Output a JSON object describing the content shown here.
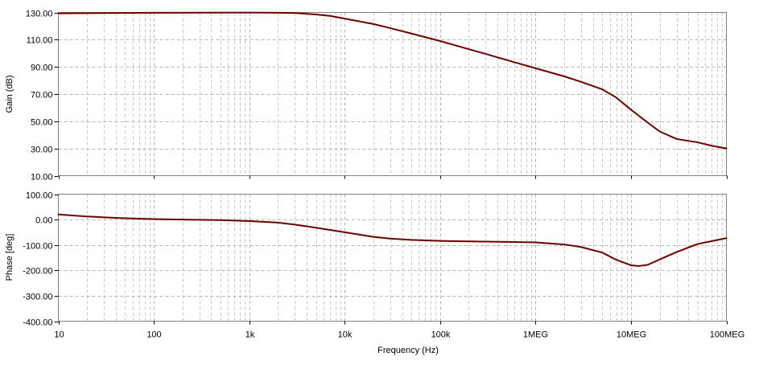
{
  "chart_data": [
    {
      "type": "line",
      "xlabel": "Frequency (Hz)",
      "ylabel": "Gain (dB)",
      "xscale": "log",
      "xlim": [
        10,
        100000000
      ],
      "ylim": [
        10,
        130
      ],
      "grid": true,
      "x_ticks": [
        {
          "value": 10,
          "label": "10"
        },
        {
          "value": 100,
          "label": "100"
        },
        {
          "value": 1000,
          "label": "1k"
        },
        {
          "value": 10000,
          "label": "10k"
        },
        {
          "value": 100000,
          "label": "100k"
        },
        {
          "value": 1000000,
          "label": "1MEG"
        },
        {
          "value": 10000000,
          "label": "10MEG"
        },
        {
          "value": 100000000,
          "label": "100MEG"
        }
      ],
      "y_ticks": [
        {
          "value": 130,
          "label": "130.00"
        },
        {
          "value": 110,
          "label": "110.00"
        },
        {
          "value": 90,
          "label": "90.00"
        },
        {
          "value": 70,
          "label": "70.00"
        },
        {
          "value": 50,
          "label": "50.00"
        },
        {
          "value": 30,
          "label": "30.00"
        },
        {
          "value": 10,
          "label": "10.00"
        }
      ],
      "series": [
        {
          "color": "#6b0000",
          "x": [
            10,
            100,
            1000,
            2000,
            3000,
            5000,
            7000,
            10000,
            20000,
            30000,
            50000,
            100000,
            200000,
            300000,
            500000,
            1000000,
            2000000,
            3000000,
            5000000,
            7000000,
            10000000,
            15000000,
            20000000,
            30000000,
            50000000,
            70000000,
            100000000
          ],
          "y": [
            129.3,
            129.8,
            129.9,
            129.8,
            129.6,
            128.5,
            127.5,
            125.5,
            121.5,
            118.5,
            114.5,
            109.0,
            103.0,
            99.5,
            95.0,
            89.0,
            83.0,
            79.0,
            73.5,
            67.5,
            58.5,
            49.0,
            42.5,
            37.0,
            34.5,
            32.0,
            30.0
          ]
        }
      ]
    },
    {
      "type": "line",
      "xlabel": "Frequency (Hz)",
      "ylabel": "Phase [deg]",
      "xscale": "log",
      "xlim": [
        10,
        100000000
      ],
      "ylim": [
        -400,
        100
      ],
      "grid": true,
      "x_ticks": [
        {
          "value": 10,
          "label": "10"
        },
        {
          "value": 100,
          "label": "100"
        },
        {
          "value": 1000,
          "label": "1k"
        },
        {
          "value": 10000,
          "label": "10k"
        },
        {
          "value": 100000,
          "label": "100k"
        },
        {
          "value": 1000000,
          "label": "1MEG"
        },
        {
          "value": 10000000,
          "label": "10MEG"
        },
        {
          "value": 100000000,
          "label": "100MEG"
        }
      ],
      "y_ticks": [
        {
          "value": 100,
          "label": "100.00"
        },
        {
          "value": 0,
          "label": "0.00"
        },
        {
          "value": -100,
          "label": "-100.00"
        },
        {
          "value": -200,
          "label": "-200.00"
        },
        {
          "value": -300,
          "label": "-300.00"
        },
        {
          "value": -400,
          "label": "-400.00"
        }
      ],
      "series": [
        {
          "color": "#6b0000",
          "x": [
            10,
            20,
            50,
            100,
            200,
            500,
            1000,
            2000,
            3000,
            5000,
            10000,
            20000,
            30000,
            50000,
            100000,
            200000,
            500000,
            1000000,
            2000000,
            3000000,
            5000000,
            7000000,
            10000000,
            12000000,
            15000000,
            20000000,
            30000000,
            50000000,
            70000000,
            100000000
          ],
          "y": [
            20,
            12,
            5,
            2,
            0,
            -2,
            -6,
            -12,
            -20,
            -32,
            -50,
            -68,
            -75,
            -80,
            -84,
            -86,
            -88,
            -90,
            -98,
            -108,
            -130,
            -158,
            -180,
            -183,
            -178,
            -157,
            -128,
            -96,
            -85,
            -73
          ]
        }
      ]
    }
  ]
}
